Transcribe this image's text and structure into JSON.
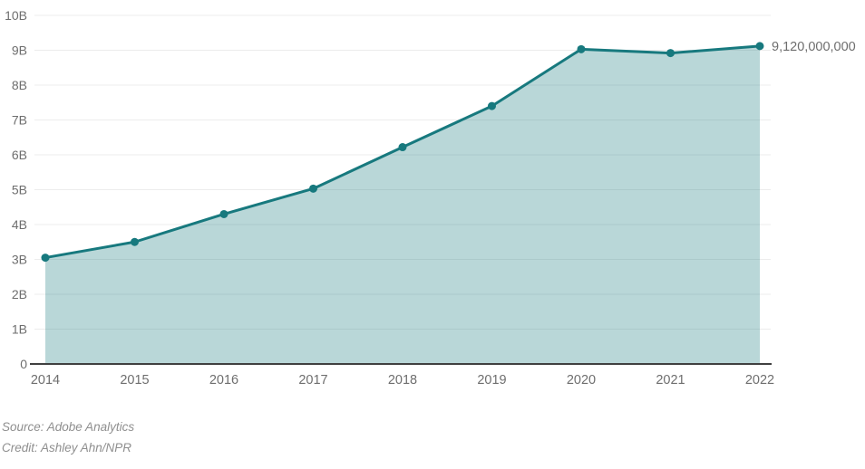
{
  "chart_data": {
    "type": "area",
    "x": [
      "2014",
      "2015",
      "2016",
      "2017",
      "2018",
      "2019",
      "2020",
      "2021",
      "2022"
    ],
    "values": [
      3.05,
      3.5,
      4.3,
      5.03,
      6.22,
      7.4,
      9.03,
      8.92,
      9.12
    ],
    "unit": "billions",
    "ylim": [
      0,
      10
    ],
    "yticks": [
      {
        "value": 0,
        "label": "0"
      },
      {
        "value": 1,
        "label": "1B"
      },
      {
        "value": 2,
        "label": "2B"
      },
      {
        "value": 3,
        "label": "3B"
      },
      {
        "value": 4,
        "label": "4B"
      },
      {
        "value": 5,
        "label": "5B"
      },
      {
        "value": 6,
        "label": "6B"
      },
      {
        "value": 7,
        "label": "7B"
      },
      {
        "value": 8,
        "label": "8B"
      },
      {
        "value": 9,
        "label": "9B"
      },
      {
        "value": 10,
        "label": "10B"
      }
    ],
    "grid": true,
    "legend": "none",
    "title": "",
    "xlabel": "",
    "ylabel": "",
    "annotations": [
      {
        "x": "2022",
        "y": 9.12,
        "text": "9,120,000,000"
      }
    ]
  },
  "colors": {
    "line": "#17797e",
    "area_fill": "rgba(23,121,126,0.30)",
    "grid": "#ececec",
    "axis": "#404040",
    "tick_text": "#6e6e6e",
    "annotation_text": "#6e6e6e",
    "footer_text": "#8f8f8f"
  },
  "footer": {
    "source": "Source: Adobe Analytics",
    "credit": "Credit: Ashley Ahn/NPR"
  }
}
